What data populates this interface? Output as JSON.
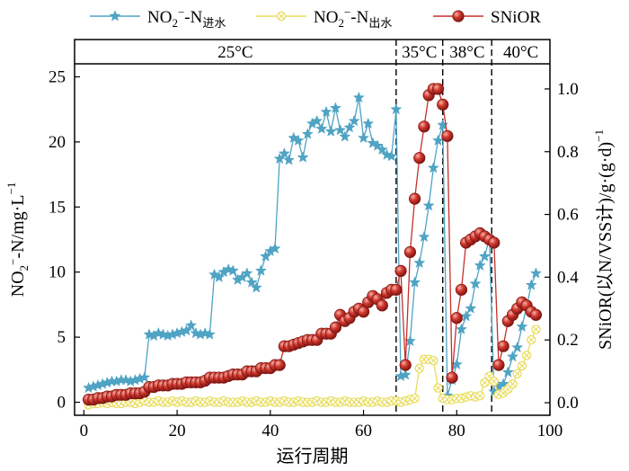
{
  "chart_data": {
    "type": "line",
    "xlabel": "运行周期",
    "ylabel_left": "NO₂⁻-N/mg·L⁻¹",
    "ylabel_right": "SNiOR(以N/VSS计)/g·(g·d)⁻¹",
    "xlim": [
      -2,
      100
    ],
    "x_ticks": [
      0,
      20,
      40,
      60,
      80,
      100
    ],
    "ylim_left": [
      -1,
      26
    ],
    "y_ticks_left": [
      0,
      5,
      10,
      15,
      20,
      25
    ],
    "ylim_right": [
      -0.04,
      1.08
    ],
    "y_ticks_right": [
      0.0,
      0.2,
      0.4,
      0.6,
      0.8,
      1.0
    ],
    "grid": false,
    "legend_position": "top",
    "phases": [
      {
        "label": "25°C",
        "x_start": -2,
        "x_end": 67
      },
      {
        "label": "35°C",
        "x_start": 67,
        "x_end": 77
      },
      {
        "label": "38°C",
        "x_start": 77,
        "x_end": 87.5
      },
      {
        "label": "40°C",
        "x_start": 87.5,
        "x_end": 100
      }
    ],
    "phase_boundaries": [
      67,
      77,
      87.5
    ],
    "series": [
      {
        "name": "NO₂⁻-N进水",
        "name_base": "NO",
        "name_sub": "2",
        "name_sup": "−",
        "name_tail": "-N",
        "name_tailsub": "进水",
        "axis": "left",
        "color": "#4fa3c3",
        "marker": "star",
        "x": [
          1,
          2,
          3,
          4,
          5,
          6,
          7,
          8,
          9,
          10,
          11,
          12,
          13,
          14,
          15,
          16,
          17,
          18,
          19,
          20,
          21,
          22,
          23,
          24,
          25,
          26,
          27,
          28,
          29,
          30,
          31,
          32,
          33,
          34,
          35,
          36,
          37,
          38,
          39,
          40,
          41,
          42,
          43,
          44,
          45,
          46,
          47,
          48,
          49,
          50,
          51,
          52,
          53,
          54,
          55,
          56,
          57,
          58,
          59,
          60,
          61,
          62,
          63,
          64,
          65,
          66,
          67,
          68,
          69,
          70,
          71,
          72,
          73,
          74,
          75,
          76,
          77,
          78,
          79,
          80,
          81,
          82,
          83,
          84,
          85,
          86,
          87,
          88,
          89,
          90,
          91,
          92,
          93,
          94,
          95,
          96,
          97
        ],
        "y": [
          1.1,
          1.2,
          1.3,
          1.4,
          1.5,
          1.6,
          1.6,
          1.7,
          1.7,
          1.6,
          1.7,
          1.8,
          1.9,
          5.2,
          5.1,
          5.3,
          5.2,
          5.1,
          5.2,
          5.3,
          5.4,
          5.5,
          5.9,
          5.3,
          5.2,
          5.3,
          5.2,
          9.8,
          9.6,
          10.0,
          10.2,
          10.1,
          9.4,
          9.6,
          9.9,
          9.2,
          8.8,
          10.1,
          11.2,
          11.6,
          11.8,
          18.7,
          19.1,
          18.6,
          20.3,
          20.1,
          18.8,
          20.6,
          21.4,
          21.6,
          21.0,
          22.3,
          20.8,
          22.6,
          20.9,
          20.4,
          21.1,
          21.6,
          23.4,
          20.3,
          21.4,
          19.9,
          19.7,
          19.4,
          19.0,
          18.9,
          22.5,
          2.0,
          2.1,
          4.7,
          9.2,
          10.7,
          12.7,
          15.1,
          18.0,
          20.1,
          21.3,
          0.5,
          1.7,
          2.9,
          5.6,
          6.6,
          7.2,
          9.1,
          10.5,
          11.2,
          12.6,
          0.8,
          1.2,
          1.4,
          2.3,
          3.5,
          4.2,
          5.8,
          7.4,
          9.0,
          9.9
        ]
      },
      {
        "name": "NO₂⁻-N出水",
        "name_base": "NO",
        "name_sub": "2",
        "name_sup": "−",
        "name_tail": "-N",
        "name_tailsub": "出水",
        "axis": "left",
        "color": "#e8dc5a",
        "marker": "circle-x",
        "x": [
          1,
          2,
          3,
          4,
          5,
          6,
          7,
          8,
          9,
          10,
          11,
          12,
          13,
          14,
          15,
          16,
          17,
          18,
          19,
          20,
          21,
          22,
          23,
          24,
          25,
          26,
          27,
          28,
          29,
          30,
          31,
          32,
          33,
          34,
          35,
          36,
          37,
          38,
          39,
          40,
          41,
          42,
          43,
          44,
          45,
          46,
          47,
          48,
          49,
          50,
          51,
          52,
          53,
          54,
          55,
          56,
          57,
          58,
          59,
          60,
          61,
          62,
          63,
          64,
          65,
          66,
          67,
          68,
          69,
          70,
          71,
          72,
          73,
          74,
          75,
          76,
          77,
          78,
          79,
          80,
          81,
          82,
          83,
          84,
          85,
          86,
          87,
          88,
          89,
          90,
          91,
          92,
          93,
          94,
          95,
          96,
          97
        ],
        "y": [
          -0.2,
          -0.1,
          -0.1,
          0.0,
          -0.1,
          0.0,
          -0.1,
          -0.1,
          0.0,
          0.0,
          -0.1,
          0.0,
          0.1,
          0.0,
          0.0,
          0.1,
          0.0,
          0.0,
          0.1,
          0.0,
          0.1,
          0.0,
          0.0,
          0.1,
          0.0,
          0.0,
          0.1,
          0.0,
          0.0,
          0.1,
          0.0,
          0.0,
          0.0,
          0.1,
          0.0,
          0.0,
          0.1,
          0.0,
          0.0,
          0.1,
          0.0,
          0.0,
          0.1,
          0.0,
          0.0,
          0.1,
          0.0,
          0.0,
          0.0,
          0.1,
          0.0,
          0.0,
          0.1,
          0.0,
          0.0,
          0.1,
          0.0,
          0.0,
          0.0,
          0.1,
          0.0,
          0.0,
          0.1,
          0.0,
          0.0,
          0.1,
          0.1,
          0.0,
          0.1,
          0.2,
          0.3,
          2.6,
          3.3,
          3.3,
          3.2,
          1.1,
          0.3,
          0.2,
          0.2,
          0.3,
          0.3,
          0.4,
          0.5,
          0.4,
          0.5,
          1.5,
          2.0,
          1.6,
          0.6,
          0.7,
          1.0,
          1.4,
          2.2,
          2.8,
          3.6,
          4.8,
          5.6
        ]
      },
      {
        "name": "SNiOR",
        "axis": "right",
        "color": "#c4302b",
        "marker": "ball",
        "x": [
          1,
          2,
          3,
          4,
          5,
          6,
          7,
          8,
          9,
          10,
          11,
          12,
          13,
          14,
          15,
          16,
          17,
          18,
          19,
          20,
          21,
          22,
          23,
          24,
          25,
          26,
          27,
          28,
          29,
          30,
          31,
          32,
          33,
          34,
          35,
          36,
          37,
          38,
          39,
          40,
          41,
          42,
          43,
          44,
          45,
          46,
          47,
          48,
          49,
          50,
          51,
          52,
          53,
          54,
          55,
          56,
          57,
          58,
          59,
          60,
          61,
          62,
          63,
          64,
          65,
          66,
          67,
          68,
          69,
          70,
          71,
          72,
          73,
          74,
          75,
          76,
          77,
          78,
          79,
          80,
          81,
          82,
          83,
          84,
          85,
          86,
          87,
          88,
          89,
          90,
          91,
          92,
          93,
          94,
          95,
          96,
          97
        ],
        "y": [
          0.01,
          0.01,
          0.015,
          0.015,
          0.02,
          0.02,
          0.025,
          0.025,
          0.025,
          0.03,
          0.03,
          0.03,
          0.035,
          0.05,
          0.05,
          0.055,
          0.055,
          0.055,
          0.06,
          0.06,
          0.06,
          0.065,
          0.065,
          0.065,
          0.065,
          0.07,
          0.08,
          0.08,
          0.08,
          0.08,
          0.085,
          0.09,
          0.09,
          0.09,
          0.1,
          0.1,
          0.1,
          0.11,
          0.11,
          0.11,
          0.12,
          0.12,
          0.18,
          0.18,
          0.185,
          0.19,
          0.195,
          0.2,
          0.2,
          0.2,
          0.22,
          0.22,
          0.22,
          0.24,
          0.28,
          0.26,
          0.27,
          0.29,
          0.3,
          0.29,
          0.32,
          0.34,
          0.33,
          0.31,
          0.35,
          0.36,
          0.36,
          0.42,
          0.12,
          0.48,
          0.65,
          0.78,
          0.88,
          0.98,
          1.0,
          1.0,
          0.95,
          0.85,
          0.08,
          0.27,
          0.36,
          0.51,
          0.52,
          0.53,
          0.54,
          0.53,
          0.52,
          0.51,
          0.12,
          0.18,
          0.26,
          0.28,
          0.3,
          0.32,
          0.31,
          0.29,
          0.28
        ]
      }
    ]
  }
}
